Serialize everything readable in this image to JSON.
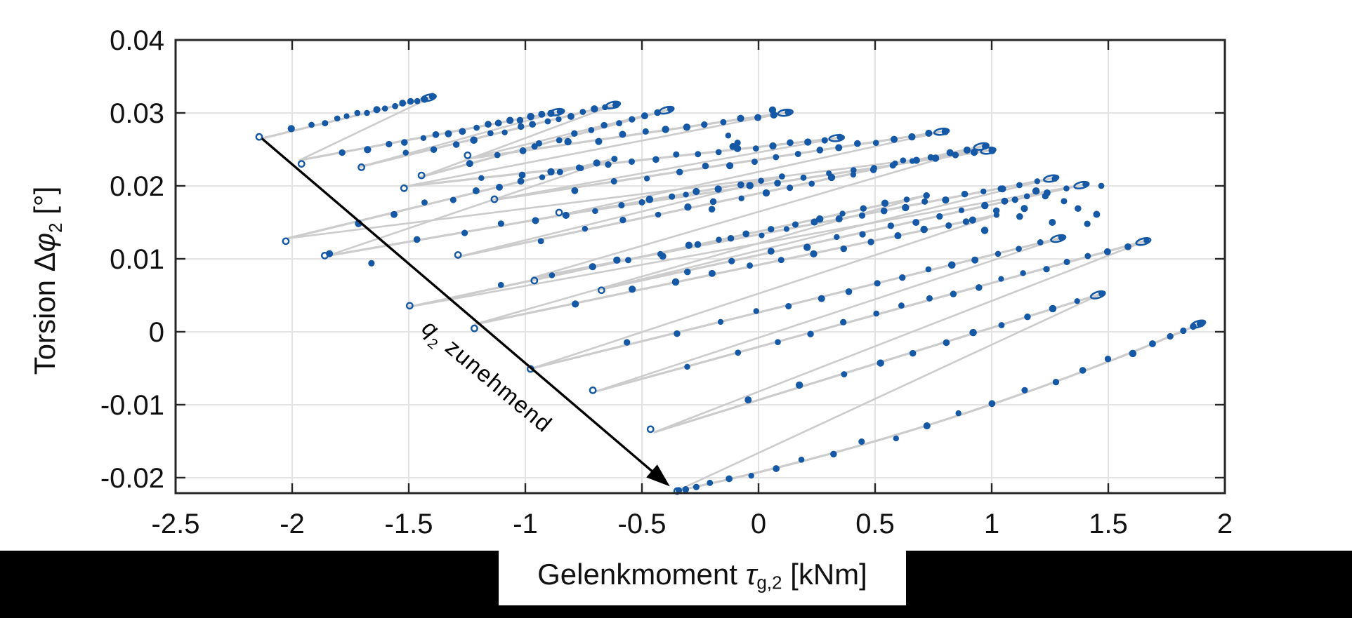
{
  "figure": {
    "background_color": "#ffffff",
    "bottom_strip_color": "#000000",
    "label_box_color": "#ffffff"
  },
  "chart_data": {
    "type": "scatter",
    "title": "",
    "xlabel_plain": "Gelenkmoment τg,2 [kNm]",
    "xlabel_parts": [
      {
        "t": "Gelenkmoment "
      },
      {
        "t": "τ",
        "i": true
      },
      {
        "t": "g,2",
        "sub": true
      },
      {
        "t": " [kNm]"
      }
    ],
    "ylabel_plain": "Torsion Δφ2 [°]",
    "ylabel_parts": [
      {
        "t": "Torsion Δ"
      },
      {
        "t": "φ",
        "i": true
      },
      {
        "t": "2",
        "sub": true
      },
      {
        "t": " [°]"
      }
    ],
    "xlim": [
      -2.5,
      2
    ],
    "ylim": [
      -0.02212,
      0.04
    ],
    "xticks": [
      {
        "v": -2.5,
        "label": "-2.5"
      },
      {
        "v": -2,
        "label": "-2"
      },
      {
        "v": -1.5,
        "label": "-1.5"
      },
      {
        "v": -1,
        "label": "-1"
      },
      {
        "v": -0.5,
        "label": "-0.5"
      },
      {
        "v": 0,
        "label": "0"
      },
      {
        "v": 0.5,
        "label": "0.5"
      },
      {
        "v": 1,
        "label": "1"
      },
      {
        "v": 1.5,
        "label": "1.5"
      },
      {
        "v": 2,
        "label": "2"
      }
    ],
    "yticks": [
      {
        "v": 0.04,
        "label": "0.04"
      },
      {
        "v": 0.03,
        "label": "0.03"
      },
      {
        "v": 0.02,
        "label": "0.02"
      },
      {
        "v": 0.01,
        "label": "0.01"
      },
      {
        "v": 0,
        "label": "0"
      },
      {
        "v": -0.01,
        "label": "-0.01"
      },
      {
        "v": -0.02,
        "label": "-0.02"
      }
    ],
    "grid": true,
    "legend": null,
    "colors": {
      "marker": "#1558a5",
      "series_line": "#cccccc",
      "grid": "#e3e3e3",
      "axis": "#262626",
      "tick_label": "#111111",
      "annotation": "#000000"
    },
    "annotation": {
      "text_plain": "q2 zunehmend",
      "text_parts": [
        {
          "t": "q",
          "i": true
        },
        {
          "t": "2",
          "sub": true
        },
        {
          "t": " zunehmend"
        }
      ],
      "arrow_from": [
        -2.13,
        0.0265
      ],
      "arrow_to": [
        -0.38,
        -0.0212
      ],
      "text_anchor": [
        -1.45,
        0.0002
      ],
      "text_angle_deg": 40
    },
    "segments": [
      {
        "from": [
          -2.13,
          0.0265
        ],
        "to": [
          -1.4,
          0.0322
        ],
        "n": 16,
        "hook": true
      },
      {
        "from": [
          -1.97,
          0.0235
        ],
        "to": [
          -0.85,
          0.0302
        ],
        "n": 18,
        "hook": true
      },
      {
        "from": [
          -1.71,
          0.0226
        ],
        "to": [
          -0.61,
          0.0312
        ],
        "n": 16,
        "hook": true
      },
      {
        "from": [
          -1.45,
          0.0212
        ],
        "to": [
          -0.38,
          0.0305
        ],
        "n": 14,
        "hook": true
      },
      {
        "from": [
          -1.25,
          0.0237
        ],
        "to": [
          0.13,
          0.0301
        ],
        "n": 14,
        "hook": true
      },
      {
        "from": [
          -1.52,
          0.0199
        ],
        "to": [
          0.35,
          0.0266
        ],
        "n": 18,
        "hook": true
      },
      {
        "from": [
          -1.13,
          0.0181
        ],
        "to": [
          0.8,
          0.0275
        ],
        "n": 18,
        "hook": true
      },
      {
        "from": [
          -0.85,
          0.016
        ],
        "to": [
          1.0,
          0.0249
        ],
        "n": 16,
        "hook": true
      },
      {
        "from": [
          -2.02,
          0.0128
        ],
        "to": [
          -0.62,
          0.0237
        ],
        "n": 13,
        "hook": false
      },
      {
        "from": [
          -1.85,
          0.0104
        ],
        "to": [
          0.1,
          0.0212
        ],
        "n": 15,
        "hook": false
      },
      {
        "from": [
          -1.3,
          0.0102
        ],
        "to": [
          0.97,
          0.0255
        ],
        "n": 20,
        "hook": true
      },
      {
        "from": [
          -0.97,
          0.0074
        ],
        "to": [
          1.27,
          0.0211
        ],
        "n": 20,
        "hook": true
      },
      {
        "from": [
          -0.68,
          0.0058
        ],
        "to": [
          1.4,
          0.0202
        ],
        "n": 17,
        "hook": true
      },
      {
        "from": [
          -1.5,
          0.0034
        ],
        "to": [
          0.72,
          0.0187
        ],
        "n": 17,
        "hook": false
      },
      {
        "from": [
          -1.22,
          0.001
        ],
        "to": [
          1.02,
          0.016
        ],
        "n": 15,
        "hook": false
      },
      {
        "from": [
          -0.97,
          -0.005
        ],
        "to": [
          1.3,
          0.0129
        ],
        "n": 17,
        "hook": true
      },
      {
        "from": [
          -0.7,
          -0.0082
        ],
        "to": [
          1.665,
          0.0125
        ],
        "n": 19,
        "hook": true
      },
      {
        "from": [
          -0.45,
          -0.0138
        ],
        "to": [
          1.47,
          0.0052
        ],
        "n": 13,
        "hook": true
      },
      {
        "from": [
          -0.35,
          -0.0218
        ],
        "to": [
          1.9,
          0.0012
        ],
        "n": 26,
        "hook": true,
        "cluster": "both",
        "sag": 20
      }
    ],
    "extra_points": [
      [
        0.06,
        0.0304
      ],
      [
        -0.13,
        0.0269
      ],
      [
        -0.09,
        0.0259
      ],
      [
        -0.11,
        0.0254
      ],
      [
        1.04,
        0.0196
      ],
      [
        1.1,
        0.0181
      ],
      [
        1.14,
        0.0169
      ],
      [
        1.19,
        0.0193
      ],
      [
        1.23,
        0.0186
      ],
      [
        1.31,
        0.0179
      ],
      [
        1.37,
        0.0169
      ],
      [
        1.45,
        0.0161
      ],
      [
        1.02,
        0.0166
      ],
      [
        0.89,
        0.0151
      ],
      [
        1.12,
        0.0158
      ],
      [
        1.26,
        0.015
      ],
      [
        -1.66,
        0.0094
      ],
      [
        -1.84,
        0.0107
      ],
      [
        0.97,
        0.0139
      ],
      [
        1.41,
        0.0148
      ],
      [
        1.47,
        0.02
      ],
      [
        0.62,
        0.0235
      ],
      [
        -0.2,
        0.0168
      ]
    ]
  }
}
